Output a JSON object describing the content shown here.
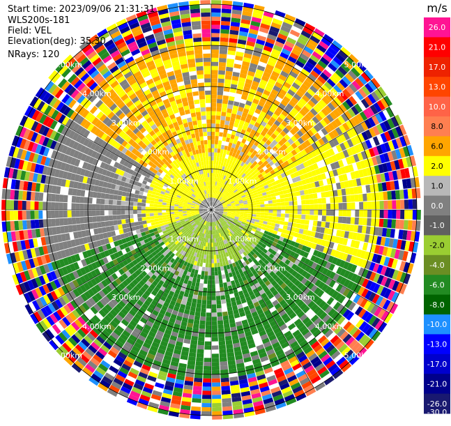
{
  "header": {
    "start_time": "Start time: 2023/09/06 21:31:31",
    "instrument": "WLS200s-181",
    "field": "Field: VEL",
    "elevation": "Elevation(deg): 35.30",
    "nrays": "NRays: 120"
  },
  "chart_data": {
    "type": "heatmap",
    "projection": "polar-ppi",
    "field": "VEL",
    "units": "m/s",
    "nrays": 120,
    "range_rings_km": [
      1.0,
      2.0,
      3.0,
      4.0,
      5.0
    ],
    "ring_labels": [
      "1.00km",
      "2.00km",
      "3.00km",
      "4.00km",
      "5.00km"
    ],
    "max_range_km": 5.1,
    "spokes_deg": [
      0,
      30,
      60,
      90,
      120,
      150,
      180,
      210,
      240,
      270,
      300,
      330
    ],
    "colorbar": {
      "title": "m/s",
      "ticks": [
        "26.0",
        "21.0",
        "17.0",
        "13.0",
        "10.0",
        "8.0",
        "6.0",
        "2.0",
        "1.0",
        "0.0",
        "-1.0",
        "-2.0",
        "-4.0",
        "-6.0",
        "-8.0",
        "-10.0",
        "-13.0",
        "-17.0",
        "-21.0",
        "-26.0",
        "-30.0"
      ],
      "colors": [
        "#ff1493",
        "#ff0000",
        "#ee2200",
        "#ff4500",
        "#ff6347",
        "#ff7f50",
        "#ffa500",
        "#ffff00",
        "#b8b8b8",
        "#808080",
        "#606060",
        "#9acd32",
        "#6b8e23",
        "#228b22",
        "#006400",
        "#1e90ff",
        "#0000ff",
        "#0000cd",
        "#00008b",
        "#191970"
      ]
    }
  }
}
